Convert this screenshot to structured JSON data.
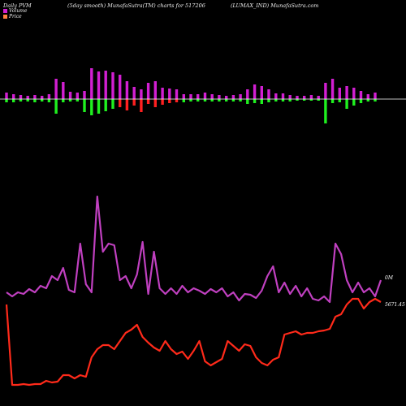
{
  "header": {
    "left": "Daily PVM",
    "center": "(5day smooth) MunafaSutra(TM) charts for 517206",
    "right": "(LUMAX_IND) MunafaSutra.com"
  },
  "legend": [
    {
      "label": "Volume",
      "color": "#d21fd2"
    },
    {
      "label": "Price",
      "color": "#ff8040"
    }
  ],
  "colors": {
    "volume_line": "#c040c0",
    "price_line": "#ff2a1a",
    "bar_up": "#d21fd2",
    "bar_down_green": "#1ff01f",
    "bar_down_red": "#ff2020",
    "zero_line": "#ffffff"
  },
  "chart_data": {
    "type": "line",
    "annotations": {
      "volume_end_label": "0M",
      "price_end_label": "5671.45"
    },
    "volume_bars": [
      {
        "up": 8,
        "down": 4,
        "down_color": "green"
      },
      {
        "up": 6,
        "down": 4,
        "down_color": "green"
      },
      {
        "up": 5,
        "down": 3,
        "down_color": "green"
      },
      {
        "up": 4,
        "down": 3,
        "down_color": "green"
      },
      {
        "up": 5,
        "down": 4,
        "down_color": "green"
      },
      {
        "up": 4,
        "down": 3,
        "down_color": "green"
      },
      {
        "up": 6,
        "down": 4,
        "down_color": "green"
      },
      {
        "up": 25,
        "down": 18,
        "down_color": "green"
      },
      {
        "up": 21,
        "down": 4,
        "down_color": "green"
      },
      {
        "up": 9,
        "down": 3,
        "down_color": "green"
      },
      {
        "up": 8,
        "down": 3,
        "down_color": "green"
      },
      {
        "up": 10,
        "down": 16,
        "down_color": "green"
      },
      {
        "up": 38,
        "down": 20,
        "down_color": "green"
      },
      {
        "up": 34,
        "down": 18,
        "down_color": "green"
      },
      {
        "up": 35,
        "down": 15,
        "down_color": "green"
      },
      {
        "up": 33,
        "down": 12,
        "down_color": "green"
      },
      {
        "up": 30,
        "down": 10,
        "down_color": "red"
      },
      {
        "up": 22,
        "down": 14,
        "down_color": "red"
      },
      {
        "up": 15,
        "down": 8,
        "down_color": "red"
      },
      {
        "up": 12,
        "down": 16,
        "down_color": "red"
      },
      {
        "up": 20,
        "down": 6,
        "down_color": "red"
      },
      {
        "up": 22,
        "down": 10,
        "down_color": "red"
      },
      {
        "up": 14,
        "down": 7,
        "down_color": "red"
      },
      {
        "up": 13,
        "down": 5,
        "down_color": "red"
      },
      {
        "up": 12,
        "down": 4,
        "down_color": "red"
      },
      {
        "up": 6,
        "down": 4,
        "down_color": "green"
      },
      {
        "up": 6,
        "down": 3,
        "down_color": "green"
      },
      {
        "up": 6,
        "down": 3,
        "down_color": "green"
      },
      {
        "up": 8,
        "down": 3,
        "down_color": "green"
      },
      {
        "up": 6,
        "down": 3,
        "down_color": "green"
      },
      {
        "up": 5,
        "down": 3,
        "down_color": "green"
      },
      {
        "up": 4,
        "down": 3,
        "down_color": "green"
      },
      {
        "up": 5,
        "down": 3,
        "down_color": "green"
      },
      {
        "up": 6,
        "down": 3,
        "down_color": "green"
      },
      {
        "up": 12,
        "down": 6,
        "down_color": "green"
      },
      {
        "up": 18,
        "down": 5,
        "down_color": "green"
      },
      {
        "up": 16,
        "down": 6,
        "down_color": "green"
      },
      {
        "up": 12,
        "down": 4,
        "down_color": "green"
      },
      {
        "up": 7,
        "down": 3,
        "down_color": "green"
      },
      {
        "up": 7,
        "down": 3,
        "down_color": "green"
      },
      {
        "up": 5,
        "down": 3,
        "down_color": "green"
      },
      {
        "up": 4,
        "down": 2,
        "down_color": "green"
      },
      {
        "up": 4,
        "down": 2,
        "down_color": "green"
      },
      {
        "up": 5,
        "down": 2,
        "down_color": "green"
      },
      {
        "up": 4,
        "down": 2,
        "down_color": "green"
      },
      {
        "up": 20,
        "down": 30,
        "down_color": "green"
      },
      {
        "up": 25,
        "down": 5,
        "down_color": "green"
      },
      {
        "up": 14,
        "down": 4,
        "down_color": "green"
      },
      {
        "up": 16,
        "down": 12,
        "down_color": "green"
      },
      {
        "up": 14,
        "down": 8,
        "down_color": "green"
      },
      {
        "up": 10,
        "down": 5,
        "down_color": "green"
      },
      {
        "up": 6,
        "down": 3,
        "down_color": "green"
      },
      {
        "up": 8,
        "down": 3,
        "down_color": "green"
      }
    ],
    "volume_line": [
      360,
      365,
      360,
      362,
      356,
      360,
      352,
      355,
      340,
      345,
      330,
      357,
      360,
      300,
      350,
      360,
      242,
      310,
      300,
      302,
      345,
      340,
      355,
      338,
      298,
      362,
      310,
      355,
      362,
      355,
      362,
      352,
      360,
      355,
      358,
      362,
      356,
      360,
      355,
      365,
      360,
      370,
      362,
      363,
      367,
      358,
      340,
      328,
      360,
      348,
      362,
      352,
      365,
      355,
      368,
      370,
      365,
      372,
      300,
      313,
      345,
      360,
      348,
      360,
      355,
      365,
      345
    ],
    "price_line": [
      375,
      474,
      474,
      473,
      474,
      473,
      473,
      469,
      471,
      470,
      462,
      462,
      466,
      462,
      464,
      440,
      430,
      425,
      425,
      430,
      420,
      410,
      406,
      400,
      415,
      422,
      428,
      432,
      420,
      430,
      436,
      433,
      442,
      432,
      420,
      445,
      450,
      446,
      442,
      420,
      426,
      432,
      424,
      426,
      440,
      447,
      450,
      443,
      440,
      412,
      410,
      408,
      412,
      410,
      410,
      408,
      407,
      405,
      390,
      387,
      375,
      368,
      368,
      380,
      372,
      368,
      372
    ]
  }
}
